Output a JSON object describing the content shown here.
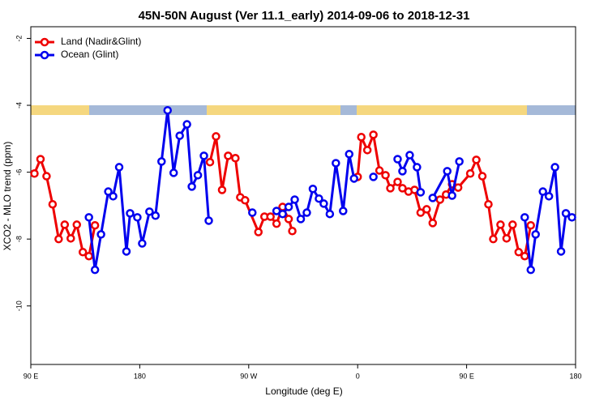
{
  "chart_data": {
    "type": "line",
    "title": "45N-50N August (Ver 11.1_early)   2014-09-06 to 2018-12-31",
    "x_label": "Longitude (deg E)",
    "y_label": "XCO2 - MLO trend (ppm)",
    "xlim": [
      90,
      540
    ],
    "ylim": [
      -11.75,
      -1.65
    ],
    "xticks": [
      {
        "value": 90,
        "label": "90 E"
      },
      180,
      {
        "value": 270,
        "label": "90 W"
      },
      {
        "value": 360,
        "label": "0"
      },
      {
        "value": 450,
        "label": "90 E"
      },
      {
        "value": 540,
        "label": "180"
      }
    ],
    "yticks": [
      -2,
      -4,
      -6,
      -8,
      -10
    ],
    "legend": "top-left",
    "grid": false,
    "series": [
      {
        "name": "Land (Nadir&Glint)",
        "color": "#ee0000",
        "x": [
          93,
          98,
          103,
          108,
          113,
          118,
          123,
          128,
          133,
          138,
          143,
          190,
          238,
          243,
          248,
          253,
          259,
          263,
          267,
          278,
          283,
          288,
          293,
          298,
          303,
          306,
          333,
          360,
          363,
          368,
          373,
          378,
          383,
          387,
          393,
          397,
          402,
          407,
          412,
          417,
          422,
          428,
          433,
          438,
          443,
          453,
          458,
          463,
          468,
          472,
          478,
          483,
          488,
          493,
          498,
          503
        ],
        "values": [
          -6.04,
          -5.61,
          -6.12,
          -6.96,
          -8.0,
          -7.57,
          -7.98,
          -7.57,
          -8.39,
          -8.51,
          -7.59,
          null,
          -5.7,
          -4.93,
          -6.53,
          -5.51,
          -5.58,
          -6.75,
          -6.84,
          -7.79,
          -7.33,
          -7.33,
          -7.54,
          -7.04,
          -7.4,
          -7.76,
          null,
          -6.14,
          -4.95,
          -5.34,
          -4.88,
          -5.95,
          -6.09,
          -6.48,
          -6.29,
          -6.48,
          -6.58,
          -6.53,
          -7.21,
          -7.11,
          -7.52,
          -6.82,
          -6.67,
          -6.36,
          -6.46,
          -6.04,
          -5.63,
          -6.12,
          -6.96,
          -8.0,
          -7.57,
          -7.98,
          -7.57,
          -8.39,
          -8.51,
          -7.59
        ]
      },
      {
        "name": "Ocean (Glint)",
        "color": "#0000ee",
        "x": [
          138,
          143,
          148,
          154,
          158,
          163,
          169,
          172,
          178,
          182,
          188,
          193,
          198,
          203,
          208,
          213,
          219,
          223,
          228,
          233,
          237,
          255,
          273,
          283,
          293,
          298,
          303,
          308,
          313,
          318,
          323,
          328,
          332,
          337,
          342,
          348,
          353,
          357,
          365,
          373,
          383,
          393,
          397,
          403,
          409,
          412,
          417,
          422,
          434,
          438,
          444,
          470,
          498,
          503,
          507,
          513,
          518,
          523,
          528,
          532,
          537
        ],
        "values": [
          -7.35,
          -8.92,
          -7.86,
          -6.58,
          -6.72,
          -5.85,
          -8.37,
          -7.23,
          -7.35,
          -8.13,
          -7.18,
          -7.3,
          -5.68,
          -4.15,
          -6.02,
          -4.91,
          -4.57,
          -6.43,
          -6.09,
          -5.51,
          -7.45,
          null,
          -7.21,
          null,
          -7.16,
          -7.25,
          -7.04,
          -6.82,
          -7.4,
          -7.21,
          -6.5,
          -6.79,
          -6.94,
          -7.25,
          -5.73,
          -7.16,
          -5.46,
          -6.19,
          null,
          -6.14,
          null,
          -5.61,
          -5.97,
          -5.49,
          -5.85,
          -6.6,
          null,
          -6.77,
          -5.97,
          -6.7,
          -5.68,
          null,
          -7.35,
          -8.92,
          -7.86,
          -6.58,
          -6.72,
          -5.85,
          -8.37,
          -7.23,
          -7.35
        ]
      }
    ]
  }
}
